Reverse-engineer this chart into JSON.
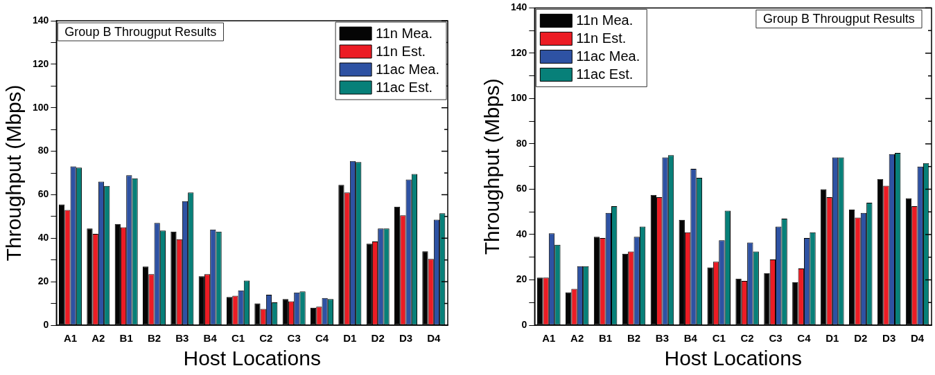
{
  "chart_data": [
    {
      "type": "bar",
      "title": "Group B Througput Results",
      "xlabel": "Host Locations",
      "ylabel": "Throughput (Mbps)",
      "categories": [
        "A1",
        "A2",
        "B1",
        "B2",
        "B3",
        "B4",
        "C1",
        "C2",
        "C3",
        "C4",
        "D1",
        "D2",
        "D3",
        "D4"
      ],
      "series": [
        {
          "name": "11n Mea.",
          "color": "#050505",
          "values": [
            55.5,
            44.5,
            46.5,
            27,
            43,
            22.5,
            13,
            10,
            12,
            8,
            64.5,
            37.5,
            54.5,
            34
          ]
        },
        {
          "name": "11n Est.",
          "color": "#ec1c24",
          "values": [
            53,
            42,
            45,
            23.5,
            39.5,
            23.5,
            13.5,
            7.5,
            11,
            8.5,
            61,
            38.5,
            50.5,
            30.5
          ]
        },
        {
          "name": "11ac Mea.",
          "color": "#2e52a3",
          "values": [
            73,
            66,
            69,
            47,
            57,
            44,
            16,
            14,
            15,
            12.5,
            75.5,
            44.5,
            67,
            48.5
          ]
        },
        {
          "name": "11ac Est.",
          "color": "#078079",
          "values": [
            72.5,
            64,
            67.5,
            43.5,
            61,
            43,
            20.5,
            10.5,
            15.5,
            12,
            75,
            44.5,
            69.5,
            51.5
          ]
        }
      ],
      "ylim": [
        0,
        140
      ],
      "yticks": [
        0,
        {
          "value": 10,
          "label": null
        },
        20,
        {
          "value": 30,
          "label": null
        },
        40,
        {
          "value": 50,
          "label": null
        },
        60,
        {
          "value": 70,
          "label": null
        },
        80,
        {
          "value": 90,
          "label": null
        },
        100,
        {
          "value": 110,
          "label": null
        },
        120,
        {
          "value": 130,
          "label": null
        },
        140
      ],
      "grid": false,
      "legend": "top right"
    },
    {
      "type": "bar",
      "title": "Group B Througput Results",
      "xlabel": "Host Locations",
      "ylabel": "Throughput (Mbps)",
      "categories": [
        "A1",
        "A2",
        "B1",
        "B2",
        "B3",
        "B4",
        "C1",
        "C2",
        "C3",
        "C4",
        "D1",
        "D2",
        "D3",
        "D4"
      ],
      "series": [
        {
          "name": "11n Mea.",
          "color": "#050505",
          "values": [
            21,
            14.5,
            39,
            31.5,
            57.5,
            46.5,
            25.5,
            20.5,
            23,
            19,
            60,
            51,
            64.5,
            56
          ]
        },
        {
          "name": "11n Est.",
          "color": "#ec1c24",
          "values": [
            21,
            16,
            38.5,
            32.5,
            56.5,
            41,
            28,
            19.5,
            29,
            25,
            56.5,
            47.5,
            61.5,
            52.5
          ]
        },
        {
          "name": "11ac Mea.",
          "color": "#2e52a3",
          "values": [
            40.5,
            26,
            49.5,
            39,
            74,
            69,
            37.5,
            36.5,
            43.5,
            38.5,
            74,
            49.5,
            75.5,
            70
          ]
        },
        {
          "name": "11ac Est.",
          "color": "#078079",
          "values": [
            35.5,
            26,
            52.5,
            43.5,
            75,
            65,
            50.5,
            32.5,
            47,
            41,
            74,
            54,
            76,
            71.5
          ]
        }
      ],
      "ylim": [
        0,
        140
      ],
      "yticks": [
        0,
        {
          "value": 10,
          "label": null
        },
        20,
        {
          "value": 30,
          "label": null
        },
        40,
        {
          "value": 50,
          "label": null
        },
        60,
        {
          "value": 70,
          "label": null
        },
        80,
        {
          "value": 90,
          "label": null
        },
        100,
        {
          "value": 110,
          "label": null
        },
        120,
        {
          "value": 130,
          "label": null
        },
        140
      ],
      "grid": false,
      "legend": "top left"
    }
  ]
}
